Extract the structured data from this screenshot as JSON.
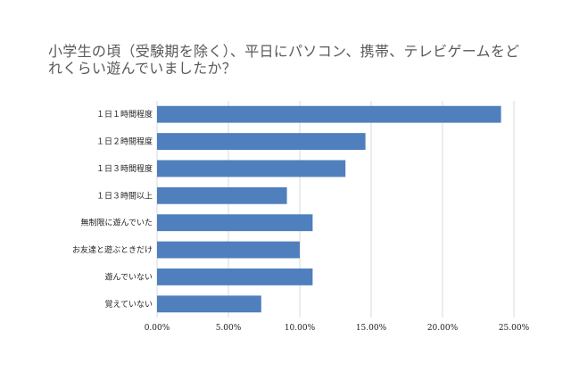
{
  "chart_data": {
    "type": "bar",
    "orientation": "horizontal",
    "title": "小学生の頃（受験期を除く）、平日にパソコン、携帯、テレビゲームをどれくらい遊んでいましたか？",
    "categories": [
      "１日１時間程度",
      "１日２時間程度",
      "１日３時間程度",
      "１日３時間以上",
      "無制限に遊んでいた",
      "お友達と遊ぶときだけ",
      "遊んでいない",
      "覚えていない"
    ],
    "values": [
      24.1,
      14.6,
      13.2,
      9.1,
      10.9,
      10.0,
      10.9,
      7.3
    ],
    "xlim": [
      0,
      25
    ],
    "xticks": [
      0,
      5,
      10,
      15,
      20,
      25
    ],
    "xtick_labels": [
      "0.00%",
      "5.00%",
      "10.00%",
      "15.00%",
      "20.00%",
      "25.00%"
    ],
    "xlabel": "",
    "ylabel": "",
    "grid": "vertical",
    "legend": "none",
    "bar_color": "#4f7fbd",
    "grid_color": "#d9d9d9"
  }
}
